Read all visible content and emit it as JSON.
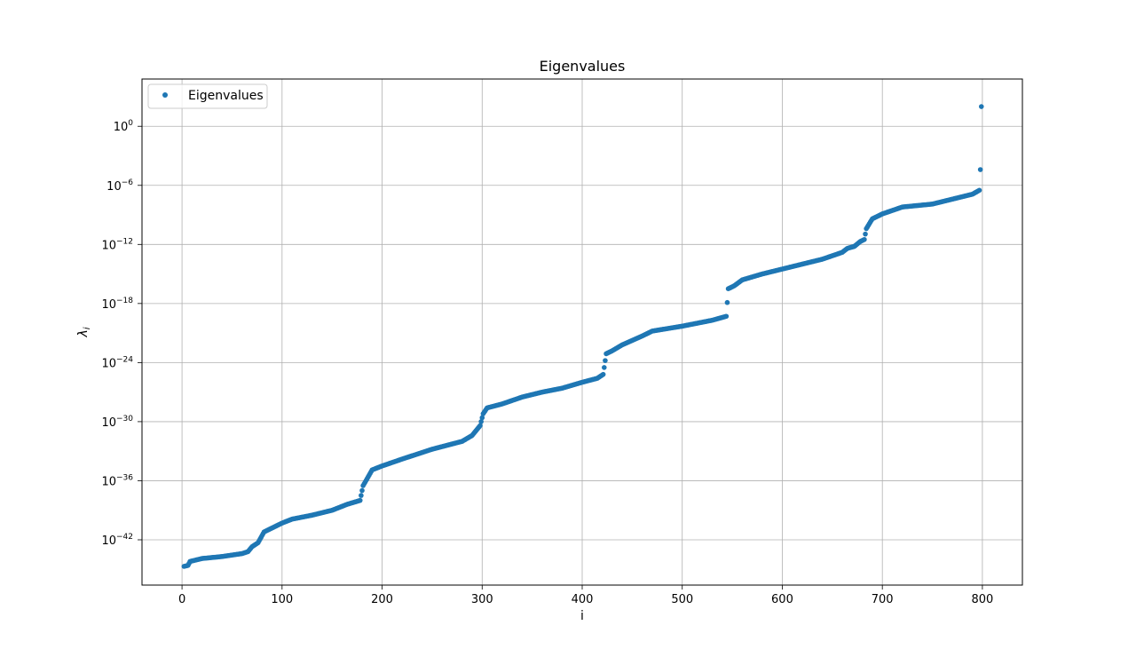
{
  "chart_data": {
    "type": "scatter",
    "title": "Eigenvalues",
    "xlabel": "i",
    "ylabel_base": "λ",
    "ylabel_sub": "i",
    "xlim": [
      -40,
      840
    ],
    "ylim_log10": [
      -46.6,
      4.8
    ],
    "y_scale": "log",
    "grid": true,
    "legend": {
      "position": "top-left",
      "entries": [
        "Eigenvalues"
      ]
    },
    "marker_color": "#1f77b4",
    "x_ticks": [
      {
        "v": 0,
        "label": "0"
      },
      {
        "v": 100,
        "label": "100"
      },
      {
        "v": 200,
        "label": "200"
      },
      {
        "v": 300,
        "label": "300"
      },
      {
        "v": 400,
        "label": "400"
      },
      {
        "v": 500,
        "label": "500"
      },
      {
        "v": 600,
        "label": "600"
      },
      {
        "v": 700,
        "label": "700"
      },
      {
        "v": 800,
        "label": "800"
      }
    ],
    "y_ticks": [
      {
        "v": 0,
        "label": "10",
        "exp": "0"
      },
      {
        "v": -6,
        "label": "10",
        "exp": "−6"
      },
      {
        "v": -12,
        "label": "10",
        "exp": "−12"
      },
      {
        "v": -18,
        "label": "10",
        "exp": "−18"
      },
      {
        "v": -24,
        "label": "10",
        "exp": "−24"
      },
      {
        "v": -30,
        "label": "10",
        "exp": "−30"
      },
      {
        "v": -36,
        "label": "10",
        "exp": "−36"
      },
      {
        "v": -42,
        "label": "10",
        "exp": "−42"
      }
    ],
    "series": [
      {
        "name": "Eigenvalues",
        "note_values": "log10 of eigenvalue, piecewise-linear anchors; points at every integer index i=0..799",
        "anchors": [
          [
            2,
            -44.7
          ],
          [
            6,
            -44.6
          ],
          [
            8,
            -44.2
          ],
          [
            20,
            -43.9
          ],
          [
            40,
            -43.7
          ],
          [
            60,
            -43.4
          ],
          [
            66,
            -43.2
          ],
          [
            70,
            -42.7
          ],
          [
            76,
            -42.3
          ],
          [
            82,
            -41.2
          ],
          [
            90,
            -40.8
          ],
          [
            100,
            -40.3
          ],
          [
            110,
            -39.9
          ],
          [
            130,
            -39.5
          ],
          [
            150,
            -39.0
          ],
          [
            165,
            -38.4
          ],
          [
            178,
            -38.0
          ],
          [
            181,
            -36.5
          ],
          [
            185,
            -35.8
          ],
          [
            190,
            -34.9
          ],
          [
            200,
            -34.5
          ],
          [
            220,
            -33.8
          ],
          [
            250,
            -32.8
          ],
          [
            280,
            -32.0
          ],
          [
            290,
            -31.4
          ],
          [
            298,
            -30.4
          ],
          [
            301,
            -29.2
          ],
          [
            305,
            -28.6
          ],
          [
            320,
            -28.2
          ],
          [
            340,
            -27.5
          ],
          [
            360,
            -27.0
          ],
          [
            380,
            -26.6
          ],
          [
            400,
            -26.0
          ],
          [
            415,
            -25.6
          ],
          [
            421,
            -25.2
          ],
          [
            424,
            -23.1
          ],
          [
            430,
            -22.8
          ],
          [
            440,
            -22.2
          ],
          [
            460,
            -21.3
          ],
          [
            470,
            -20.8
          ],
          [
            500,
            -20.3
          ],
          [
            530,
            -19.7
          ],
          [
            544,
            -19.3
          ],
          [
            546,
            -16.5
          ],
          [
            552,
            -16.2
          ],
          [
            560,
            -15.6
          ],
          [
            580,
            -15.0
          ],
          [
            600,
            -14.5
          ],
          [
            620,
            -14.0
          ],
          [
            640,
            -13.5
          ],
          [
            660,
            -12.8
          ],
          [
            665,
            -12.4
          ],
          [
            672,
            -12.2
          ],
          [
            678,
            -11.7
          ],
          [
            682,
            -11.5
          ],
          [
            684,
            -10.4
          ],
          [
            690,
            -9.4
          ],
          [
            700,
            -8.9
          ],
          [
            720,
            -8.2
          ],
          [
            750,
            -7.9
          ],
          [
            770,
            -7.4
          ],
          [
            790,
            -6.9
          ],
          [
            797,
            -6.5
          ],
          [
            798,
            -4.4
          ],
          [
            799,
            2.0
          ]
        ]
      }
    ]
  }
}
